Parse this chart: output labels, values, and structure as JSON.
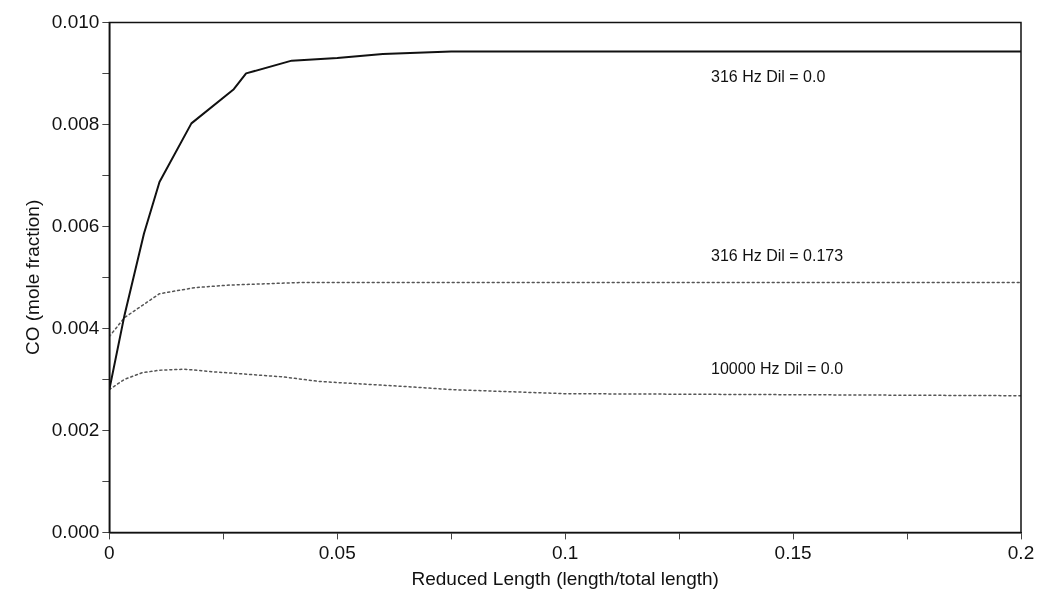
{
  "chart_data": {
    "type": "line",
    "xlabel": "Reduced Length (length/total length)",
    "ylabel": "CO (mole fraction)",
    "xlim": [
      0,
      0.2
    ],
    "ylim": [
      0,
      0.01
    ],
    "xticks": [
      0,
      {
        "value": 0.025,
        "label": null
      },
      0.05,
      {
        "value": 0.075,
        "label": null
      },
      0.1,
      {
        "value": 0.125,
        "label": null
      },
      0.15,
      {
        "value": 0.175,
        "label": null
      },
      0.2
    ],
    "yticks": [
      {
        "value": 0,
        "label": "0.000"
      },
      {
        "value": 0.001,
        "label": null
      },
      {
        "value": 0.002,
        "label": "0.002"
      },
      {
        "value": 0.003,
        "label": null
      },
      {
        "value": 0.004,
        "label": "0.004"
      },
      {
        "value": 0.005,
        "label": null
      },
      {
        "value": 0.006,
        "label": "0.006"
      },
      {
        "value": 0.007,
        "label": null
      },
      {
        "value": 0.008,
        "label": "0.008"
      },
      {
        "value": 0.009,
        "label": null
      },
      {
        "value": 0.01,
        "label": "0.010"
      }
    ],
    "grid": false,
    "legend": false,
    "marker": "none",
    "series": [
      {
        "name": "316 Hz Dil = 0.0",
        "color": "#111111",
        "line_style": "solid",
        "x": [
          0,
          0.0033,
          0.0076,
          0.011,
          0.018,
          0.0273,
          0.03,
          0.04,
          0.05,
          0.06,
          0.075,
          0.1,
          0.15,
          0.2
        ],
        "values": [
          0.0028,
          0.00425,
          0.00586,
          0.00687,
          0.00802,
          0.00869,
          0.009,
          0.00925,
          0.0093,
          0.00938,
          0.00943,
          0.00943,
          0.00943,
          0.00943
        ]
      },
      {
        "name": "316 Hz Dil = 0.173",
        "color": "#555555",
        "line_style": "dotted",
        "x": [
          0,
          0.0033,
          0.011,
          0.0188,
          0.0265,
          0.042,
          0.06,
          0.1,
          0.15,
          0.2
        ],
        "values": [
          0.00384,
          0.00421,
          0.00468,
          0.0048,
          0.00485,
          0.0049,
          0.0049,
          0.0049,
          0.0049,
          0.0049
        ]
      },
      {
        "name": "10000 Hz Dil = 0.0",
        "color": "#555555",
        "line_style": "dotted",
        "x": [
          0,
          0.0033,
          0.0072,
          0.011,
          0.0165,
          0.0227,
          0.0304,
          0.038,
          0.046,
          0.0536,
          0.065,
          0.075,
          0.1,
          0.15,
          0.2
        ],
        "values": [
          0.0028,
          0.003,
          0.00313,
          0.00318,
          0.0032,
          0.00315,
          0.0031,
          0.00305,
          0.00296,
          0.00292,
          0.00286,
          0.0028,
          0.00272,
          0.0027,
          0.00268
        ]
      }
    ]
  }
}
